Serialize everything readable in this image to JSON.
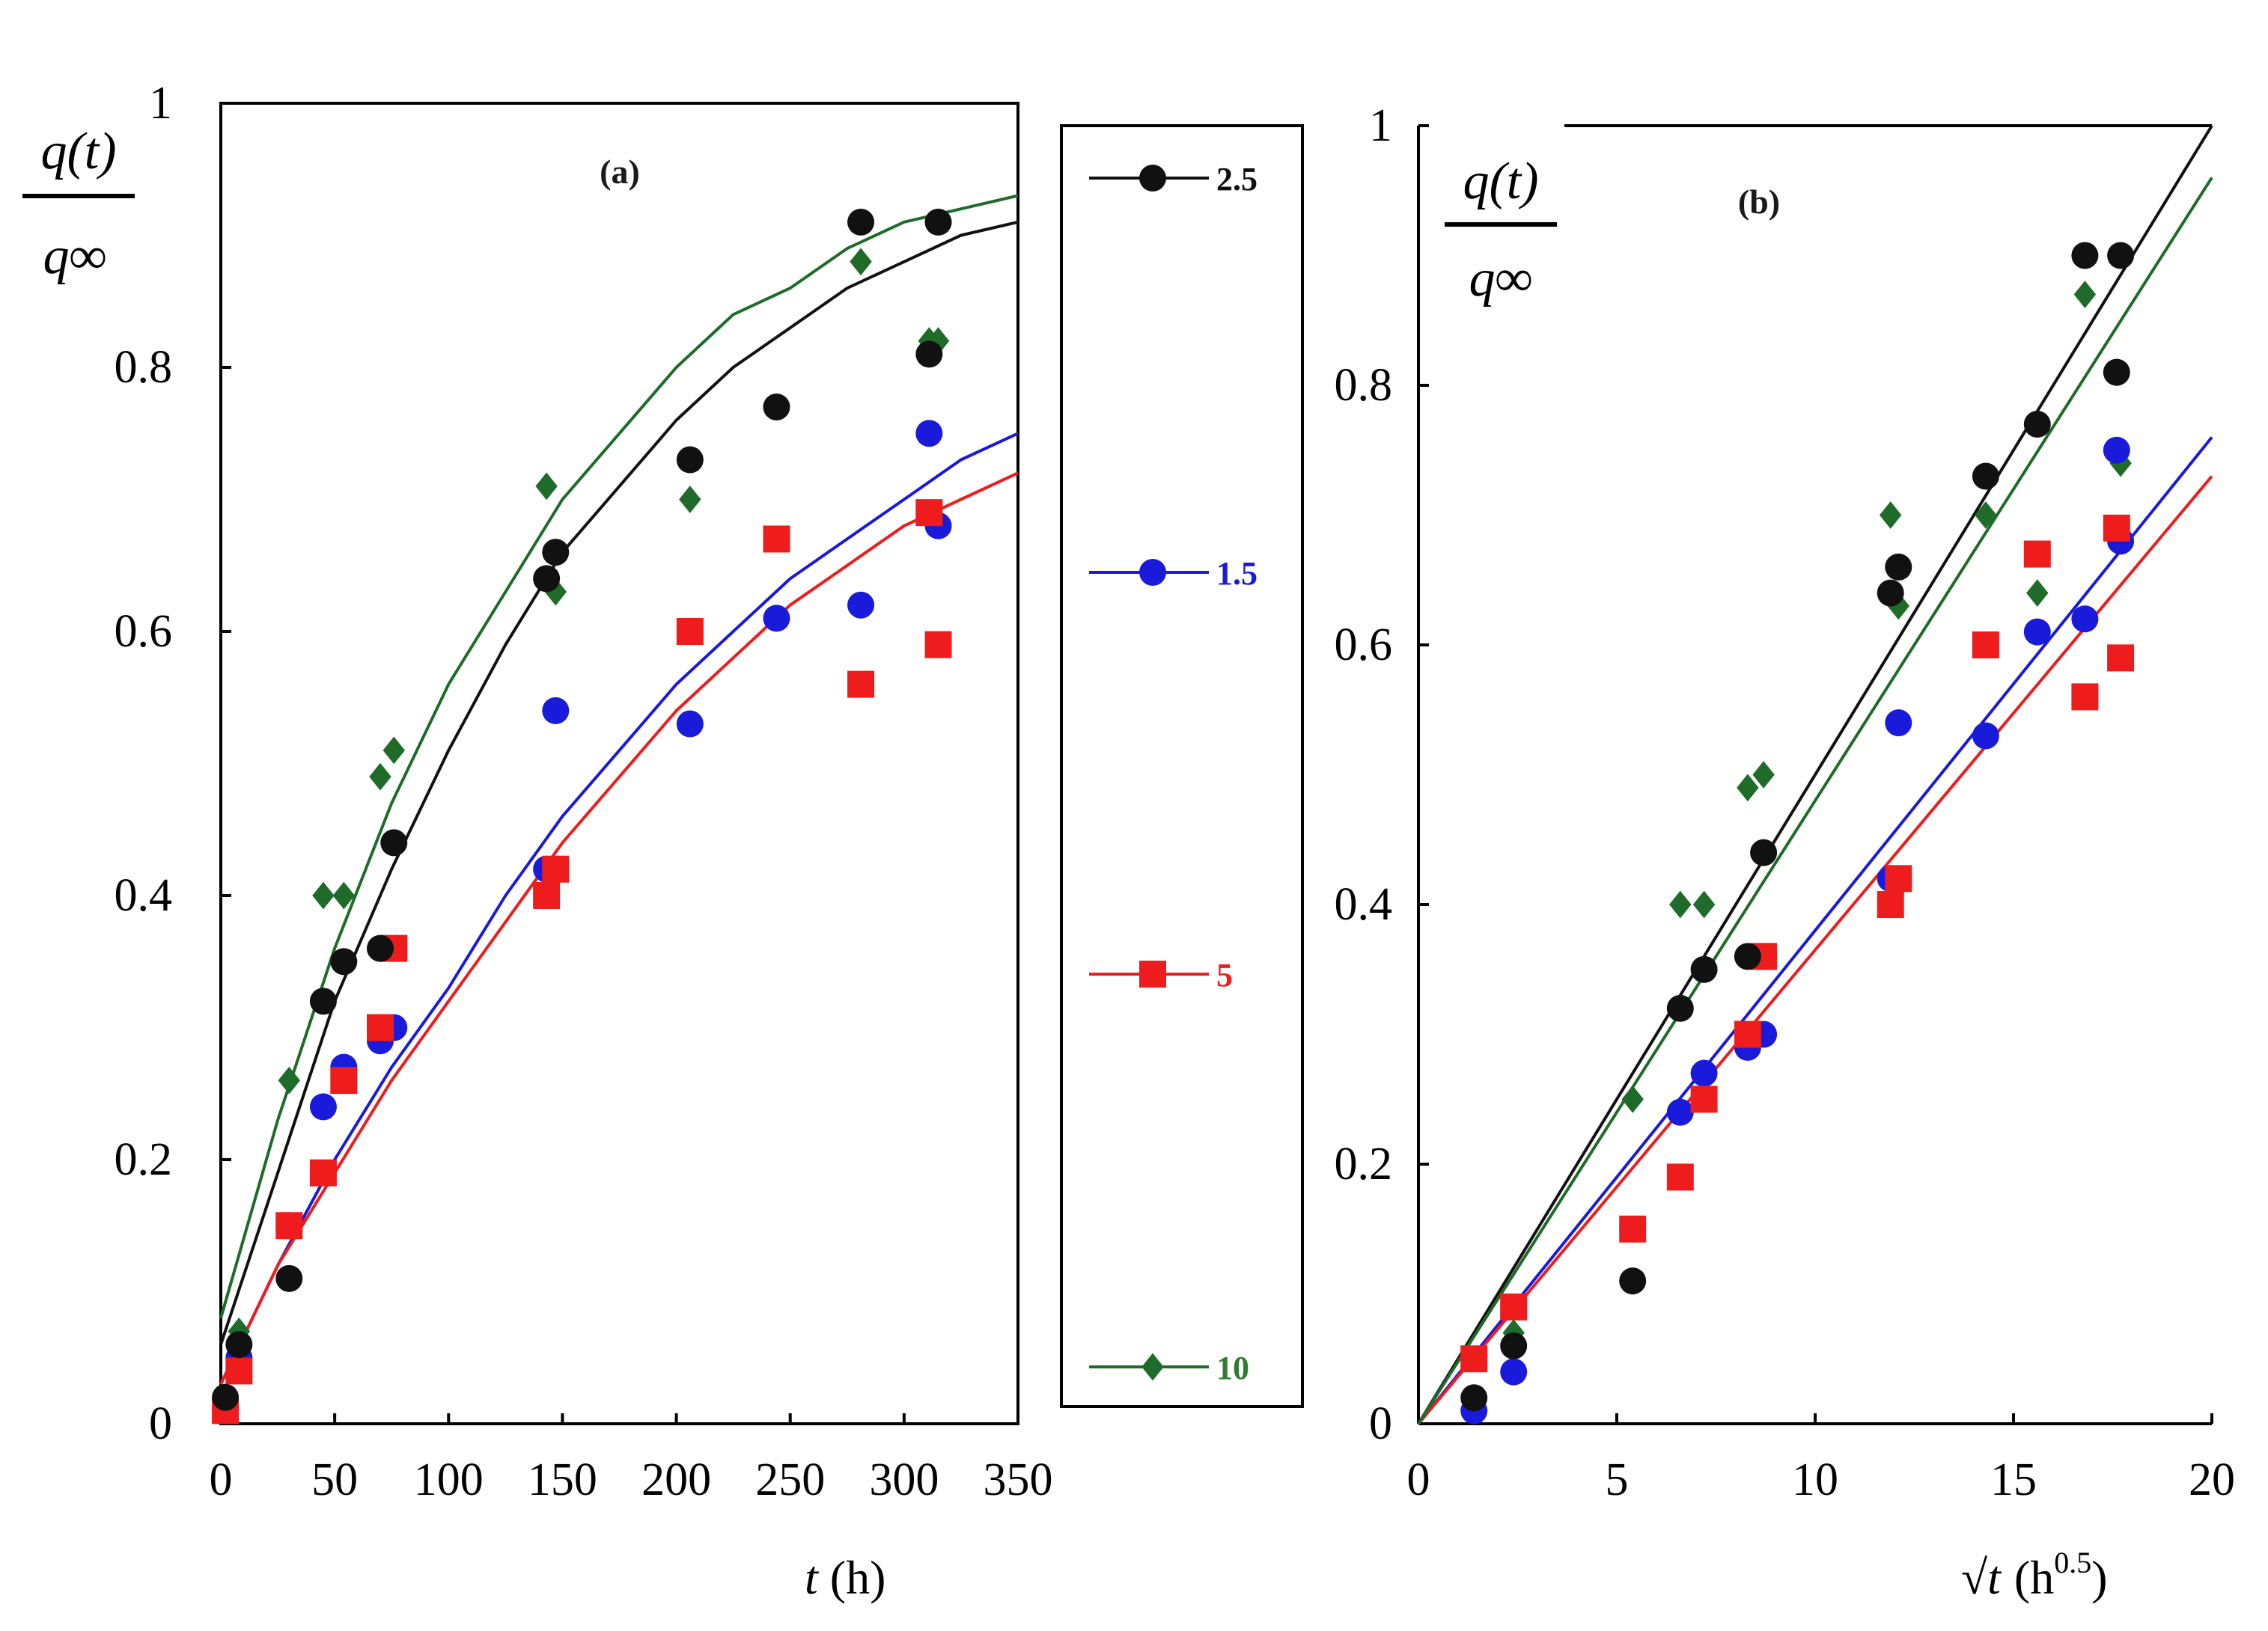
{
  "colors": {
    "2.5": "#111111",
    "1.5": "#1a1adb",
    "5": "#ee1c1c",
    "10": "#1e6b2a",
    "legend_text_2.5": "#111111",
    "legend_text_1.5": "#1a1adb",
    "legend_text_5": "#ee1c1c",
    "legend_text_10": "#2e7d32"
  },
  "legend": {
    "entries": [
      {
        "key": "2.5",
        "label": "2.5",
        "marker": "circle"
      },
      {
        "key": "1.5",
        "label": "1.5",
        "marker": "circle"
      },
      {
        "key": "5",
        "label": "5",
        "marker": "square"
      },
      {
        "key": "10",
        "label": "10",
        "marker": "diamond"
      }
    ]
  },
  "y_label": {
    "numerator": "q(t)",
    "denominator": "q∞"
  },
  "chart_data": [
    {
      "type": "scatter",
      "panel_label": "(a)",
      "xlabel_var": "t",
      "xlabel_unit": "(h)",
      "xlim": [
        0,
        350
      ],
      "ylim": [
        0,
        1
      ],
      "xticks": [
        "0",
        "50",
        "100",
        "150",
        "200",
        "250",
        "300",
        "350"
      ],
      "yticks": [
        "0",
        "0.2",
        "0.4",
        "0.6",
        "0.8",
        "1"
      ],
      "series": [
        {
          "name": "2.5",
          "marker": "circle",
          "x": [
            2,
            8,
            30,
            45,
            54,
            70,
            76,
            143,
            147,
            206,
            244,
            281,
            311,
            315
          ],
          "y": [
            0.02,
            0.06,
            0.11,
            0.32,
            0.35,
            0.36,
            0.44,
            0.64,
            0.66,
            0.73,
            0.77,
            0.91,
            0.81,
            0.91
          ],
          "fit": {
            "x": [
              0,
              25,
              50,
              75,
              100,
              125,
              150,
              175,
              200,
              225,
              250,
              275,
              300,
              325,
              350
            ],
            "y": [
              0.06,
              0.19,
              0.32,
              0.42,
              0.51,
              0.59,
              0.66,
              0.71,
              0.76,
              0.8,
              0.83,
              0.86,
              0.88,
              0.9,
              0.91
            ]
          }
        },
        {
          "name": "1.5",
          "marker": "circle",
          "x": [
            2,
            8,
            30,
            45,
            54,
            70,
            76,
            143,
            147,
            206,
            244,
            281,
            311,
            315
          ],
          "y": [
            0.01,
            0.05,
            0.15,
            0.24,
            0.27,
            0.29,
            0.3,
            0.42,
            0.54,
            0.53,
            0.61,
            0.62,
            0.75,
            0.68
          ],
          "fit": {
            "x": [
              0,
              25,
              50,
              75,
              100,
              125,
              150,
              175,
              200,
              225,
              250,
              275,
              300,
              325,
              350
            ],
            "y": [
              0.03,
              0.12,
              0.2,
              0.27,
              0.33,
              0.4,
              0.46,
              0.51,
              0.56,
              0.6,
              0.64,
              0.67,
              0.7,
              0.73,
              0.75
            ]
          }
        },
        {
          "name": "5",
          "marker": "square",
          "x": [
            2,
            8,
            30,
            45,
            54,
            70,
            76,
            143,
            147,
            206,
            244,
            281,
            311,
            315
          ],
          "y": [
            0.01,
            0.04,
            0.15,
            0.19,
            0.26,
            0.3,
            0.36,
            0.4,
            0.42,
            0.6,
            0.67,
            0.56,
            0.69,
            0.59
          ],
          "fit": {
            "x": [
              0,
              25,
              50,
              75,
              100,
              125,
              150,
              175,
              200,
              225,
              250,
              275,
              300,
              325,
              350
            ],
            "y": [
              0.03,
              0.12,
              0.19,
              0.26,
              0.32,
              0.38,
              0.44,
              0.49,
              0.54,
              0.58,
              0.62,
              0.65,
              0.68,
              0.7,
              0.72
            ]
          }
        },
        {
          "name": "10",
          "marker": "diamond",
          "x": [
            2,
            8,
            30,
            45,
            54,
            70,
            76,
            143,
            147,
            206,
            244,
            281,
            311,
            315
          ],
          "y": [
            0.02,
            0.07,
            0.26,
            0.4,
            0.4,
            0.49,
            0.51,
            0.71,
            0.63,
            0.7,
            0.77,
            0.88,
            0.82,
            0.82
          ],
          "fit": {
            "x": [
              0,
              25,
              50,
              75,
              100,
              125,
              150,
              175,
              200,
              225,
              250,
              275,
              300,
              325,
              350
            ],
            "y": [
              0.08,
              0.23,
              0.36,
              0.47,
              0.56,
              0.63,
              0.7,
              0.75,
              0.8,
              0.84,
              0.86,
              0.89,
              0.91,
              0.92,
              0.93
            ]
          }
        }
      ]
    },
    {
      "type": "scatter",
      "panel_label": "(b)",
      "xlabel_var": "√t",
      "xlabel_unit": "(h",
      "xlabel_sup": "0.5",
      "xlabel_close": ")",
      "xlim": [
        0,
        20
      ],
      "ylim": [
        0,
        1
      ],
      "xticks": [
        "0",
        "5",
        "10",
        "15",
        "20"
      ],
      "yticks": [
        "0",
        "0.2",
        "0.4",
        "0.6",
        "0.8",
        "1"
      ],
      "series": [
        {
          "name": "2.5",
          "marker": "circle",
          "x": [
            1.4,
            2.4,
            5.4,
            6.6,
            7.2,
            8.3,
            8.7,
            11.9,
            12.1,
            14.3,
            15.6,
            16.8,
            17.6,
            17.7
          ],
          "y": [
            0.02,
            0.06,
            0.11,
            0.32,
            0.35,
            0.36,
            0.44,
            0.64,
            0.66,
            0.73,
            0.77,
            0.9,
            0.81,
            0.9
          ],
          "fit": {
            "x": [
              0,
              20
            ],
            "y": [
              0.0,
              1.0
            ]
          }
        },
        {
          "name": "1.5",
          "marker": "circle",
          "x": [
            1.4,
            2.4,
            5.4,
            6.6,
            7.2,
            8.3,
            8.7,
            11.9,
            12.1,
            14.3,
            15.6,
            16.8,
            17.6,
            17.7
          ],
          "y": [
            0.01,
            0.04,
            0.15,
            0.24,
            0.27,
            0.29,
            0.3,
            0.42,
            0.54,
            0.53,
            0.61,
            0.62,
            0.75,
            0.68
          ],
          "fit": {
            "x": [
              0,
              20
            ],
            "y": [
              0.0,
              0.76
            ]
          }
        },
        {
          "name": "5",
          "marker": "square",
          "x": [
            1.4,
            2.4,
            5.4,
            6.6,
            7.2,
            8.3,
            8.7,
            11.9,
            12.1,
            14.3,
            15.6,
            16.8,
            17.6,
            17.7
          ],
          "y": [
            0.05,
            0.09,
            0.15,
            0.19,
            0.25,
            0.3,
            0.36,
            0.4,
            0.42,
            0.6,
            0.67,
            0.56,
            0.69,
            0.59
          ],
          "fit": {
            "x": [
              0,
              20
            ],
            "y": [
              0.0,
              0.73
            ]
          }
        },
        {
          "name": "10",
          "marker": "diamond",
          "x": [
            1.4,
            2.4,
            5.4,
            6.6,
            7.2,
            8.3,
            8.7,
            11.9,
            12.1,
            14.3,
            15.6,
            16.8,
            17.6,
            17.7
          ],
          "y": [
            0.02,
            0.07,
            0.25,
            0.4,
            0.4,
            0.49,
            0.5,
            0.7,
            0.63,
            0.7,
            0.64,
            0.87,
            0.81,
            0.74
          ],
          "fit": {
            "x": [
              0,
              20
            ],
            "y": [
              0.0,
              0.96
            ]
          }
        }
      ]
    }
  ]
}
